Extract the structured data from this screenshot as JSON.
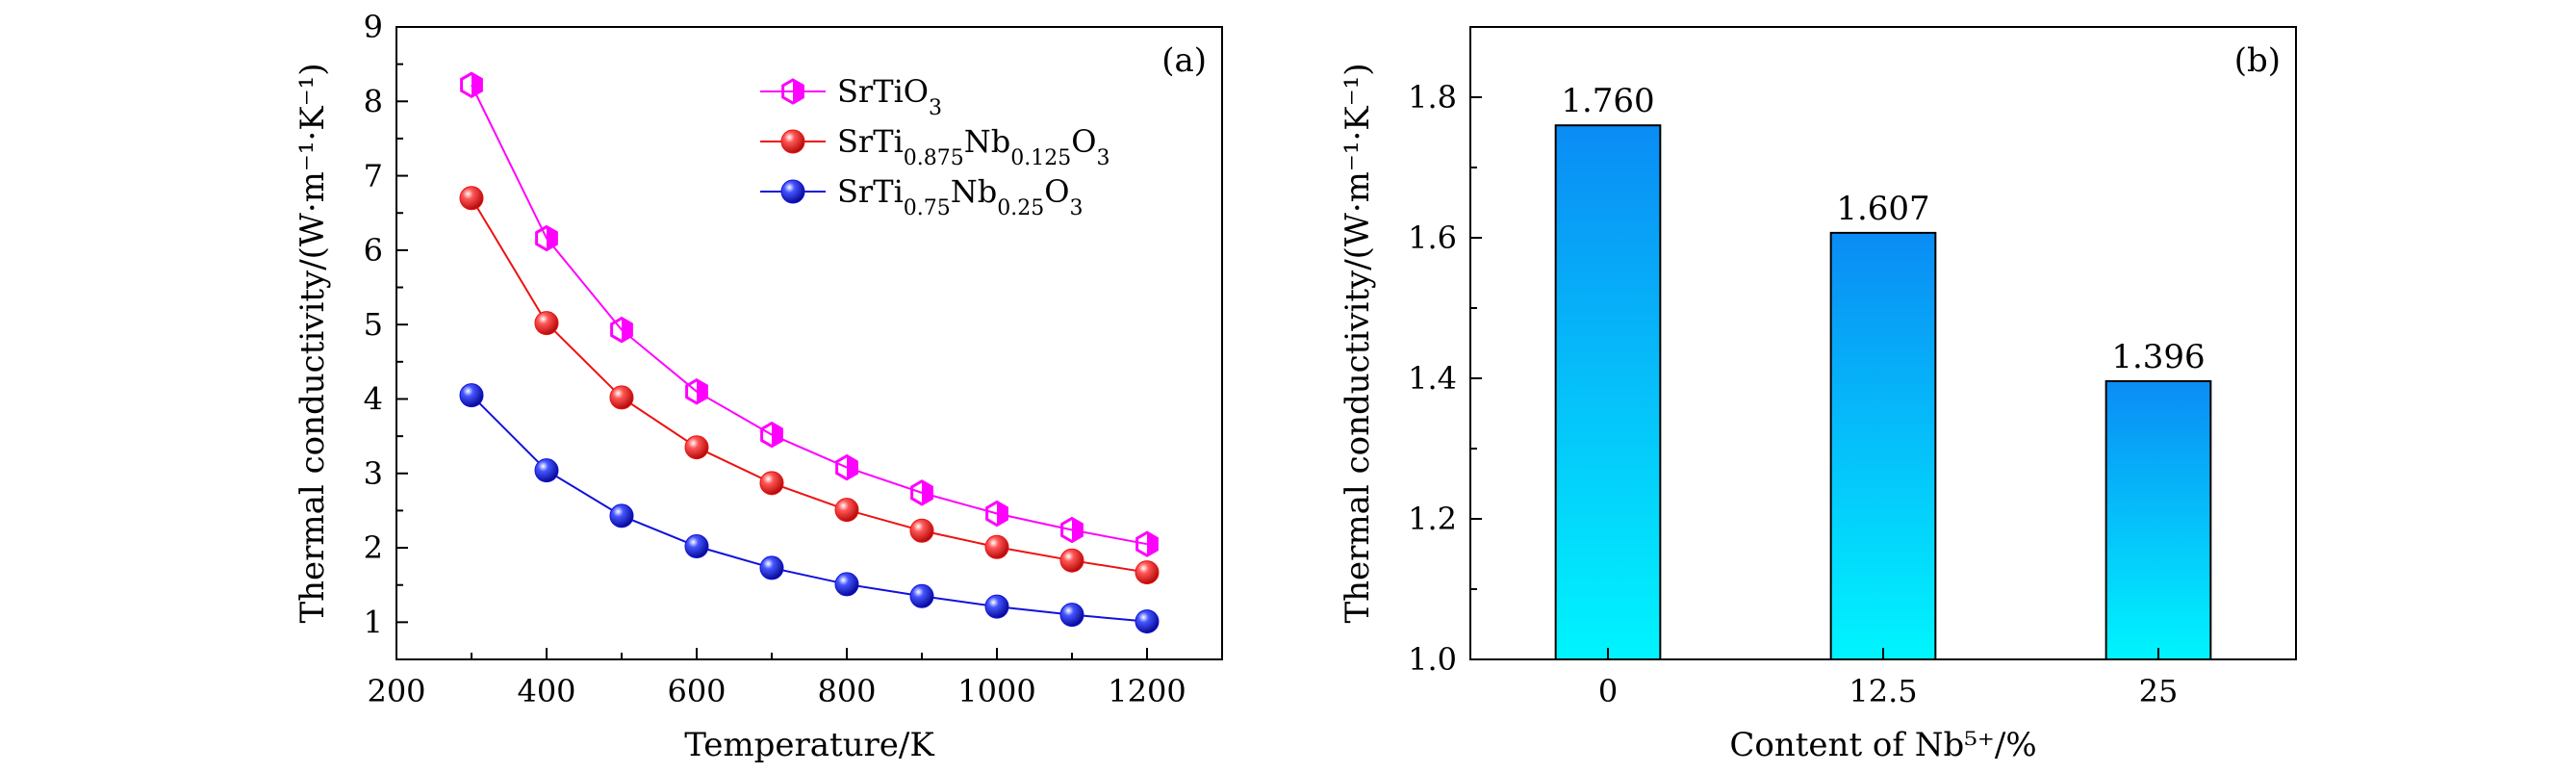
{
  "chart_data": [
    {
      "panel_label": "(a)",
      "type": "line",
      "xlabel": "Temperature/K",
      "ylabel": "Thermal conductivity/(W·m⁻¹·K⁻¹)",
      "xlim": [
        200,
        1300
      ],
      "ylim": [
        0.5,
        9
      ],
      "x_ticks": [
        200,
        400,
        600,
        800,
        1000,
        1200
      ],
      "x_tick_labels": [
        "200",
        "400",
        "600",
        "800",
        "1000",
        "1200"
      ],
      "y_ticks": [
        1,
        2,
        3,
        4,
        5,
        6,
        7,
        8,
        9
      ],
      "y_tick_labels": [
        "1",
        "2",
        "3",
        "4",
        "5",
        "6",
        "7",
        "8",
        "9"
      ],
      "legend_position": "top-center",
      "x": [
        300,
        400,
        500,
        600,
        700,
        800,
        900,
        1000,
        1100,
        1200
      ],
      "series": [
        {
          "name_parts": [
            {
              "t": "SrTiO",
              "sub": false
            },
            {
              "t": "3",
              "sub": true
            }
          ],
          "color": "#ff00ff",
          "marker": "half-hexagon",
          "values": [
            8.22,
            6.16,
            4.93,
            4.1,
            3.52,
            3.08,
            2.74,
            2.46,
            2.24,
            2.05
          ]
        },
        {
          "name_parts": [
            {
              "t": "SrTi",
              "sub": false
            },
            {
              "t": "0.875",
              "sub": true
            },
            {
              "t": "Nb",
              "sub": false
            },
            {
              "t": "0.125",
              "sub": true
            },
            {
              "t": "O",
              "sub": false
            },
            {
              "t": "3",
              "sub": true
            }
          ],
          "color": "#ee1111",
          "marker": "sphere",
          "values": [
            6.7,
            5.02,
            4.02,
            3.35,
            2.87,
            2.51,
            2.23,
            2.01,
            1.83,
            1.67
          ]
        },
        {
          "name_parts": [
            {
              "t": "SrTi",
              "sub": false
            },
            {
              "t": "0.75",
              "sub": true
            },
            {
              "t": "Nb",
              "sub": false
            },
            {
              "t": "0.25",
              "sub": true
            },
            {
              "t": "O",
              "sub": false
            },
            {
              "t": "3",
              "sub": true
            }
          ],
          "color": "#1111dd",
          "marker": "sphere",
          "values": [
            4.05,
            3.04,
            2.43,
            2.02,
            1.73,
            1.51,
            1.35,
            1.21,
            1.1,
            1.01
          ]
        }
      ]
    },
    {
      "panel_label": "(b)",
      "type": "bar",
      "xlabel": "Content of Nb⁵⁺/%",
      "ylabel": "Thermal conductivity/(W·m⁻¹·K⁻¹)",
      "ylim": [
        1.0,
        1.9
      ],
      "y_ticks": [
        1.0,
        1.2,
        1.4,
        1.6,
        1.8
      ],
      "y_tick_labels": [
        "1.0",
        "1.2",
        "1.4",
        "1.6",
        "1.8"
      ],
      "categories": [
        "0",
        "12.5",
        "25"
      ],
      "values": [
        1.76,
        1.607,
        1.396
      ],
      "data_labels": [
        "1.760",
        "1.607",
        "1.396"
      ],
      "bar_gradient": [
        "#0a8cf5",
        "#00f5ff"
      ]
    }
  ]
}
